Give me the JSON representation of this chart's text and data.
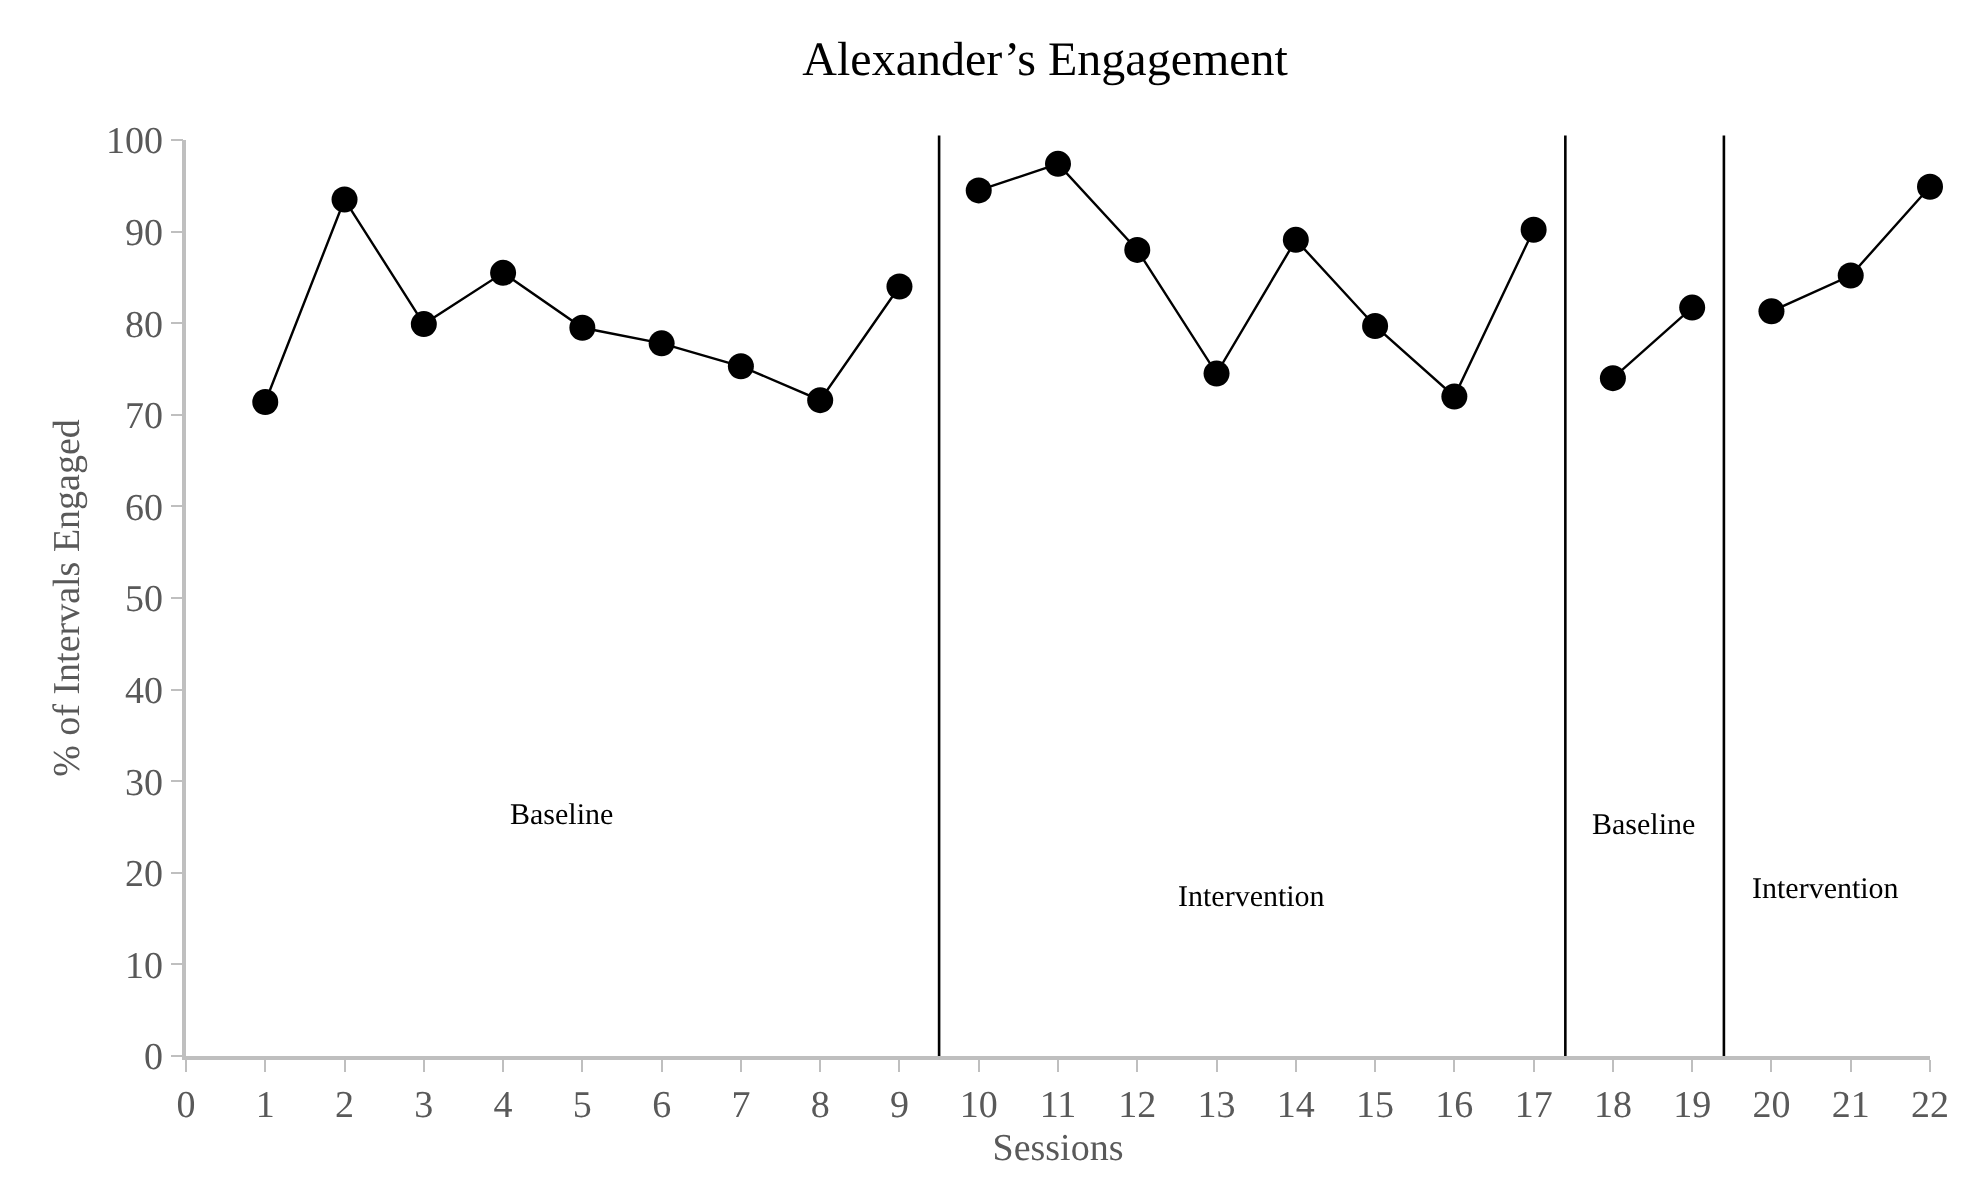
{
  "chart_data": {
    "type": "line",
    "title": "Alexander’s Engagement",
    "xlabel": "Sessions",
    "ylabel": "% of Intervals Engaged",
    "series": [
      {
        "color": "#000000",
        "x": [
          1,
          2,
          3,
          4,
          5,
          6,
          7,
          8,
          9
        ],
        "values": [
          71.4,
          93.5,
          79.9,
          85.5,
          79.5,
          77.8,
          75.3,
          71.6,
          84.0
        ]
      },
      {
        "color": "#000000",
        "x": [
          10,
          11,
          12,
          13,
          14,
          15,
          16,
          17
        ],
        "values": [
          94.5,
          97.4,
          88.0,
          74.5,
          89.1,
          79.7,
          72.0,
          90.2
        ]
      },
      {
        "color": "#000000",
        "x": [
          18,
          19
        ],
        "values": [
          74.0,
          81.7
        ]
      },
      {
        "color": "#000000",
        "x": [
          20,
          21,
          22
        ],
        "values": [
          81.3,
          85.2,
          94.9
        ]
      }
    ],
    "xlim": [
      0,
      22
    ],
    "xticks": [
      0,
      1,
      2,
      3,
      4,
      5,
      6,
      7,
      8,
      9,
      10,
      11,
      12,
      13,
      14,
      15,
      16,
      17,
      18,
      19,
      20,
      21,
      22
    ],
    "ylim": [
      0,
      100
    ],
    "yticks": [
      0,
      10,
      20,
      30,
      40,
      50,
      60,
      70,
      80,
      90,
      100
    ],
    "ref_lines": [
      {
        "axis": "x",
        "value": 9.5,
        "color": "#000000"
      },
      {
        "axis": "x",
        "value": 17.4,
        "color": "#000000"
      },
      {
        "axis": "x",
        "value": 19.4,
        "color": "#000000"
      }
    ],
    "annotations": [
      "Baseline",
      "Intervention",
      "Baseline",
      "Intervention"
    ],
    "marker": "circle",
    "line_style": "solid"
  }
}
